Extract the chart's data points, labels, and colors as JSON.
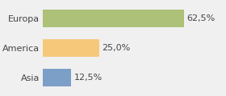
{
  "categories": [
    "Asia",
    "America",
    "Europa"
  ],
  "values": [
    12.5,
    25.0,
    62.5
  ],
  "bar_colors": [
    "#7b9fc7",
    "#f6c97a",
    "#adc178"
  ],
  "labels": [
    "12,5%",
    "25,0%",
    "62,5%"
  ],
  "background_color": "#f0f0f0",
  "xlim": [
    0,
    80
  ],
  "label_fontsize": 8.0,
  "tick_fontsize": 8.0
}
